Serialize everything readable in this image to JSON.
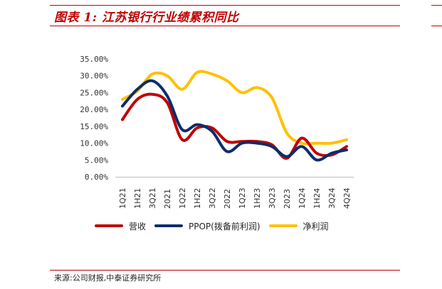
{
  "header": {
    "title": "图表 1:  江苏银行行业绩累积同比"
  },
  "footer": {
    "source": "来源:公司财报,中泰证券研究所"
  },
  "chart_data": {
    "type": "line",
    "categories": [
      "1Q21",
      "1H21",
      "3Q21",
      "2021",
      "1Q22",
      "1H22",
      "3Q22",
      "2022",
      "1Q23",
      "1H23",
      "3Q23",
      "2023",
      "1Q24",
      "1H24",
      "3Q24",
      "4Q24"
    ],
    "series": [
      {
        "name": "营收",
        "color": "#c00000",
        "values": [
          17.0,
          23.0,
          24.5,
          22.0,
          11.0,
          14.5,
          14.5,
          10.5,
          10.5,
          10.5,
          9.5,
          5.5,
          11.5,
          7.0,
          6.5,
          9.0
        ]
      },
      {
        "name": "PPOP(拨备前利润)",
        "color": "#0d2c6c",
        "values": [
          21.0,
          26.0,
          28.5,
          24.0,
          14.0,
          15.5,
          13.5,
          7.5,
          10.0,
          10.0,
          9.0,
          6.0,
          9.0,
          5.0,
          7.0,
          8.0
        ]
      },
      {
        "name": "净利润",
        "color": "#ffc000",
        "values": [
          23.0,
          25.5,
          30.5,
          30.0,
          26.0,
          31.0,
          30.5,
          28.5,
          25.0,
          26.5,
          23.5,
          13.0,
          10.0,
          10.0,
          10.0,
          11.0
        ]
      }
    ],
    "yticks": [
      "0.00%",
      "5.00%",
      "10.00%",
      "15.00%",
      "20.00%",
      "25.00%",
      "30.00%",
      "35.00%"
    ],
    "ylim": [
      0,
      35
    ],
    "grid": false,
    "legend_position": "bottom"
  }
}
